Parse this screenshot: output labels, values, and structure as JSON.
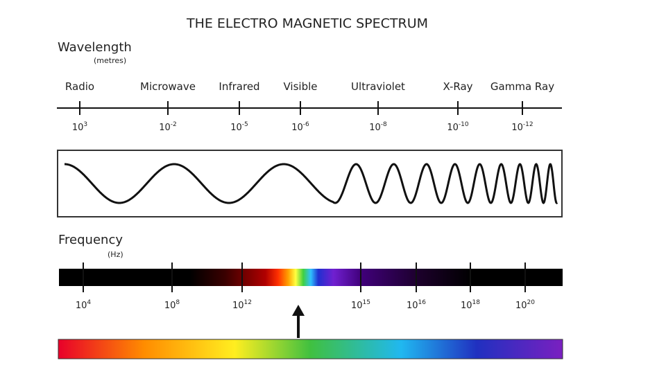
{
  "title": "THE ELECTRO MAGNETIC SPECTRUM",
  "wavelength": {
    "label": "Wavelength",
    "unit": "(metres)",
    "ticks": [
      {
        "name": "Radio",
        "base": "10",
        "exp": "3"
      },
      {
        "name": "Microwave",
        "base": "10",
        "exp": "-2"
      },
      {
        "name": "Infrared",
        "base": "10",
        "exp": "-5"
      },
      {
        "name": "Visible",
        "base": "10",
        "exp": "-6"
      },
      {
        "name": "Ultraviolet",
        "base": "10",
        "exp": "-8"
      },
      {
        "name": "X-Ray",
        "base": "10",
        "exp": "-10"
      },
      {
        "name": "Gamma Ray",
        "base": "10",
        "exp": "-12"
      }
    ]
  },
  "frequency": {
    "label": "Frequency",
    "unit": "(Hz)",
    "ticks": [
      {
        "base": "10",
        "exp": "4"
      },
      {
        "base": "10",
        "exp": "8"
      },
      {
        "base": "10",
        "exp": "12"
      },
      {
        "base": "10",
        "exp": "15"
      },
      {
        "base": "10",
        "exp": "16"
      },
      {
        "base": "10",
        "exp": "18"
      },
      {
        "base": "10",
        "exp": "20"
      }
    ]
  }
}
